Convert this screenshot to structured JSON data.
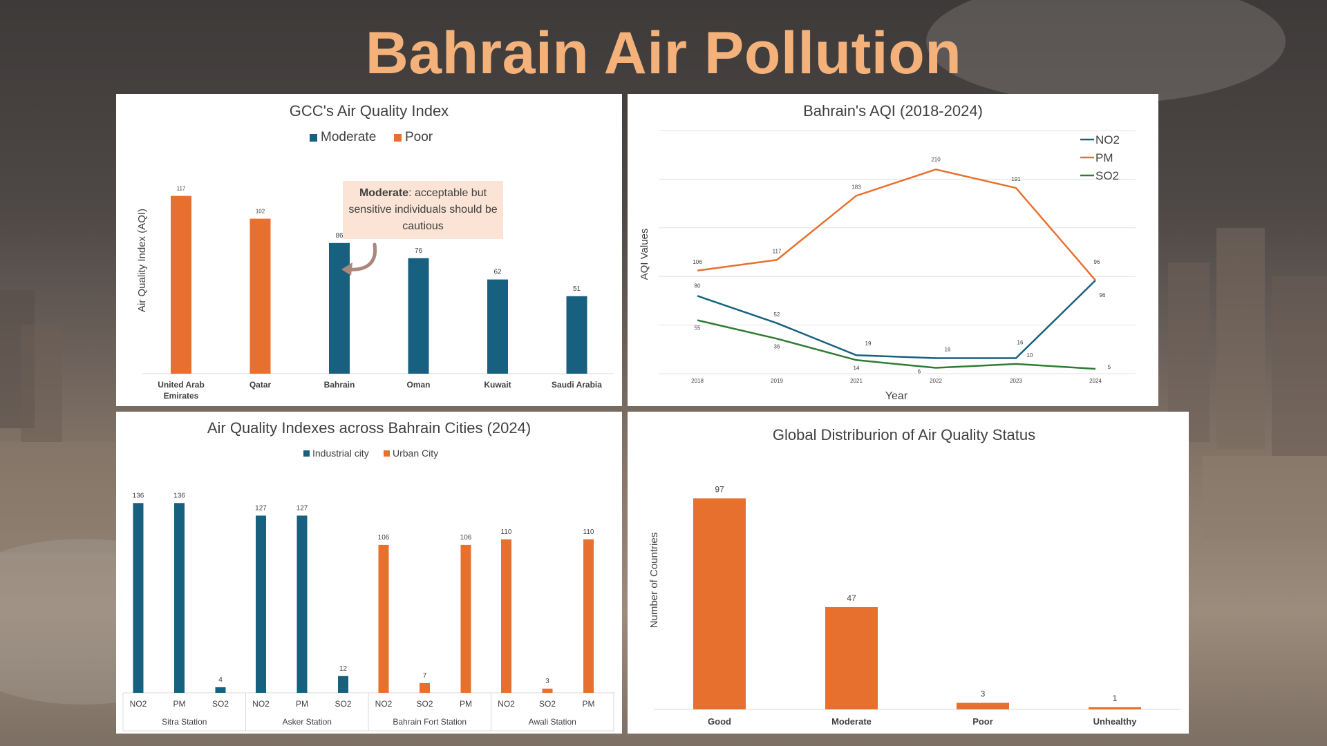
{
  "page": {
    "title": "Bahrain Air Pollution"
  },
  "colors": {
    "blue": "#17607f",
    "orange": "#e8702e",
    "green": "#2e7b33",
    "title": "#f4b27a"
  },
  "chart_data": [
    {
      "id": "gcc",
      "type": "bar",
      "title": "GCC's  Air Quality Index",
      "ylabel": "Air Quality Index (AQI)",
      "xlabel": "",
      "ylim": [
        0,
        140
      ],
      "legend": [
        "Moderate",
        "Poor"
      ],
      "legend_position": "top",
      "categories": [
        "United Arab Emirates",
        "Qatar",
        "Bahrain",
        "Oman",
        "Kuwait",
        "Saudi Arabia"
      ],
      "category_lines": [
        [
          "United Arab",
          "Emirates"
        ],
        [
          "Qatar"
        ],
        [
          "Bahrain"
        ],
        [
          "Oman"
        ],
        [
          "Kuwait"
        ],
        [
          "Saudi Arabia"
        ]
      ],
      "values": [
        117,
        102,
        86,
        76,
        62,
        51
      ],
      "status": [
        "Poor",
        "Poor",
        "Moderate",
        "Moderate",
        "Moderate",
        "Moderate"
      ],
      "annotation": {
        "bold": "Moderate",
        "text": ": acceptable but sensitive individuals should be cautious"
      }
    },
    {
      "id": "bahrain_aqi",
      "type": "line",
      "title": "Bahrain's AQI (2018-2024)",
      "xlabel": "Year",
      "ylabel": "AQI Values",
      "ylim": [
        0,
        250
      ],
      "grid": true,
      "legend_position": "top-right",
      "x": [
        "2018",
        "2019",
        "2021",
        "2022",
        "2023",
        "2024"
      ],
      "series": [
        {
          "name": "NO2",
          "values": [
            80,
            52,
            19,
            16,
            16,
            96
          ]
        },
        {
          "name": "PM",
          "values": [
            106,
            117,
            183,
            210,
            191,
            96
          ]
        },
        {
          "name": "SO2",
          "values": [
            55,
            36,
            14,
            6,
            10,
            5
          ]
        }
      ]
    },
    {
      "id": "cities",
      "type": "bar",
      "title": "Air Quality Indexes across Bahrain Cities (2024)",
      "legend": [
        "Industrial city",
        "Urban City"
      ],
      "legend_position": "top",
      "ylim": [
        0,
        145
      ],
      "groups": [
        {
          "name": "Sitra Station",
          "type": "Industrial city",
          "categories": [
            "NO2",
            "PM",
            "SO2"
          ],
          "values": [
            136,
            136,
            4
          ]
        },
        {
          "name": "Asker Station",
          "type": "Industrial city",
          "categories": [
            "NO2",
            "PM",
            "SO2"
          ],
          "values": [
            127,
            127,
            12
          ]
        },
        {
          "name": "Bahrain Fort Station",
          "type": "Urban City",
          "categories": [
            "NO2",
            "SO2",
            "PM"
          ],
          "values": [
            106,
            7,
            106
          ]
        },
        {
          "name": "Awali Station",
          "type": "Urban City",
          "categories": [
            "NO2",
            "SO2",
            "PM"
          ],
          "values": [
            110,
            3,
            110
          ]
        }
      ]
    },
    {
      "id": "global",
      "type": "bar",
      "title": "Global Distriburion of Air Quality Status",
      "ylabel": "Number of Countries",
      "xlabel": "",
      "ylim": [
        0,
        100
      ],
      "categories": [
        "Good",
        "Moderate",
        "Poor",
        "Unhealthy"
      ],
      "values": [
        97,
        47,
        3,
        1
      ]
    }
  ]
}
